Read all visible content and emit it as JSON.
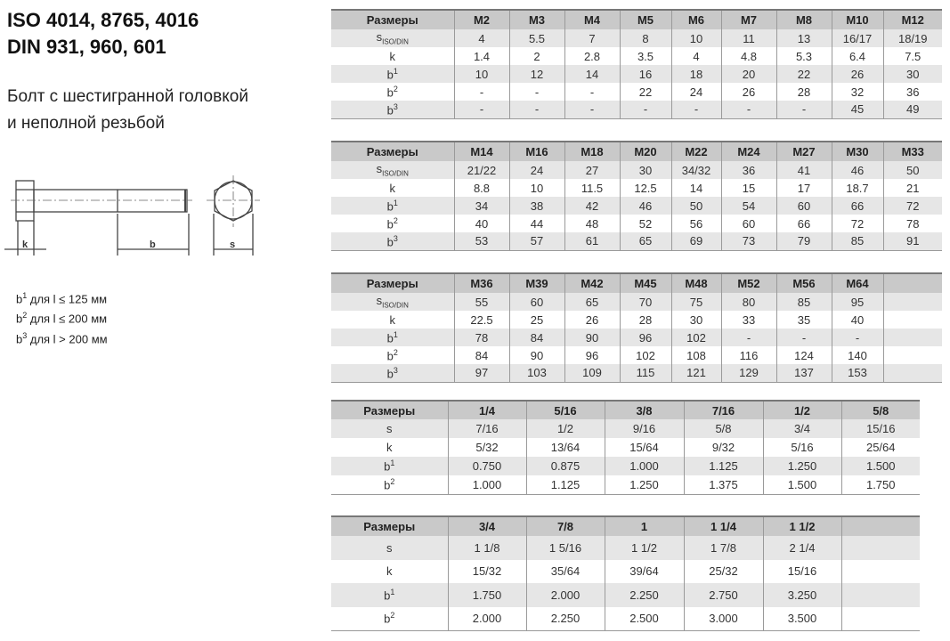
{
  "title_lines": [
    "ISO 4014, 8765, 4016",
    "DIN 931, 960, 601"
  ],
  "subtitle_lines": [
    "Болт с шестигранной головкой",
    "и неполной резьбой"
  ],
  "drawing_labels": {
    "k": "k",
    "b": "b",
    "s": "s"
  },
  "notes": [
    {
      "base": "b",
      "sup": "1",
      "text": " для l ≤ 125 мм"
    },
    {
      "base": "b",
      "sup": "2",
      "text": " для l ≤ 200 мм"
    },
    {
      "base": "b",
      "sup": "3",
      "text": " для l > 200 мм"
    }
  ],
  "tables": [
    {
      "header": [
        "Размеры",
        "M2",
        "M3",
        "M4",
        "M5",
        "M6",
        "M7",
        "M8",
        "M10",
        "M12"
      ],
      "rows": [
        {
          "label": {
            "base": "s",
            "sub": "ISO/DIN"
          },
          "values": [
            "4",
            "5.5",
            "7",
            "8",
            "10",
            "11",
            "13",
            "16/17",
            "18/19"
          ]
        },
        {
          "label": {
            "base": "k"
          },
          "values": [
            "1.4",
            "2",
            "2.8",
            "3.5",
            "4",
            "4.8",
            "5.3",
            "6.4",
            "7.5"
          ]
        },
        {
          "label": {
            "base": "b",
            "sup": "1"
          },
          "values": [
            "10",
            "12",
            "14",
            "16",
            "18",
            "20",
            "22",
            "26",
            "30"
          ]
        },
        {
          "label": {
            "base": "b",
            "sup": "2"
          },
          "values": [
            "-",
            "-",
            "-",
            "22",
            "24",
            "26",
            "28",
            "32",
            "36"
          ]
        },
        {
          "label": {
            "base": "b",
            "sup": "3"
          },
          "values": [
            "-",
            "-",
            "-",
            "-",
            "-",
            "-",
            "-",
            "45",
            "49"
          ]
        }
      ]
    },
    {
      "header": [
        "Размеры",
        "M14",
        "M16",
        "M18",
        "M20",
        "M22",
        "M24",
        "M27",
        "M30",
        "M33"
      ],
      "rows": [
        {
          "label": {
            "base": "s",
            "sub": "ISO/DIN"
          },
          "values": [
            "21/22",
            "24",
            "27",
            "30",
            "34/32",
            "36",
            "41",
            "46",
            "50"
          ]
        },
        {
          "label": {
            "base": "k"
          },
          "values": [
            "8.8",
            "10",
            "11.5",
            "12.5",
            "14",
            "15",
            "17",
            "18.7",
            "21"
          ]
        },
        {
          "label": {
            "base": "b",
            "sup": "1"
          },
          "values": [
            "34",
            "38",
            "42",
            "46",
            "50",
            "54",
            "60",
            "66",
            "72"
          ]
        },
        {
          "label": {
            "base": "b",
            "sup": "2"
          },
          "values": [
            "40",
            "44",
            "48",
            "52",
            "56",
            "60",
            "66",
            "72",
            "78"
          ]
        },
        {
          "label": {
            "base": "b",
            "sup": "3"
          },
          "values": [
            "53",
            "57",
            "61",
            "65",
            "69",
            "73",
            "79",
            "85",
            "91"
          ]
        }
      ]
    },
    {
      "header": [
        "Размеры",
        "M36",
        "M39",
        "M42",
        "M45",
        "M48",
        "M52",
        "M56",
        "M64",
        ""
      ],
      "rows": [
        {
          "label": {
            "base": "s",
            "sub": "ISO/DIN"
          },
          "values": [
            "55",
            "60",
            "65",
            "70",
            "75",
            "80",
            "85",
            "95",
            ""
          ]
        },
        {
          "label": {
            "base": "k"
          },
          "values": [
            "22.5",
            "25",
            "26",
            "28",
            "30",
            "33",
            "35",
            "40",
            ""
          ]
        },
        {
          "label": {
            "base": "b",
            "sup": "1"
          },
          "values": [
            "78",
            "84",
            "90",
            "96",
            "102",
            "-",
            "-",
            "-",
            ""
          ]
        },
        {
          "label": {
            "base": "b",
            "sup": "2"
          },
          "values": [
            "84",
            "90",
            "96",
            "102",
            "108",
            "116",
            "124",
            "140",
            ""
          ]
        },
        {
          "label": {
            "base": "b",
            "sup": "3"
          },
          "values": [
            "97",
            "103",
            "109",
            "115",
            "121",
            "129",
            "137",
            "153",
            ""
          ]
        }
      ]
    },
    {
      "header": [
        "Размеры",
        "1/4",
        "5/16",
        "3/8",
        "7/16",
        "1/2",
        "5/8"
      ],
      "rows": [
        {
          "label": {
            "base": "s"
          },
          "values": [
            "7/16",
            "1/2",
            "9/16",
            "5/8",
            "3/4",
            "15/16"
          ]
        },
        {
          "label": {
            "base": "k"
          },
          "values": [
            "5/32",
            "13/64",
            "15/64",
            "9/32",
            "5/16",
            "25/64"
          ]
        },
        {
          "label": {
            "base": "b",
            "sup": "1"
          },
          "values": [
            "0.750",
            "0.875",
            "1.000",
            "1.125",
            "1.250",
            "1.500"
          ]
        },
        {
          "label": {
            "base": "b",
            "sup": "2"
          },
          "values": [
            "1.000",
            "1.125",
            "1.250",
            "1.375",
            "1.500",
            "1.750"
          ]
        }
      ]
    },
    {
      "header": [
        "Размеры",
        "3/4",
        "7/8",
        "1",
        "1 1/4",
        "1 1/2",
        ""
      ],
      "rows": [
        {
          "label": {
            "base": "s"
          },
          "values": [
            "1 1/8",
            "1 5/16",
            "1 1/2",
            "1 7/8",
            "2 1/4",
            ""
          ]
        },
        {
          "label": {
            "base": "k"
          },
          "values": [
            "15/32",
            "35/64",
            "39/64",
            "25/32",
            "15/16",
            ""
          ]
        },
        {
          "label": {
            "base": "b",
            "sup": "1"
          },
          "values": [
            "1.750",
            "2.000",
            "2.250",
            "2.750",
            "3.250",
            ""
          ]
        },
        {
          "label": {
            "base": "b",
            "sup": "2"
          },
          "values": [
            "2.000",
            "2.250",
            "2.500",
            "3.000",
            "3.500",
            ""
          ]
        }
      ]
    }
  ]
}
